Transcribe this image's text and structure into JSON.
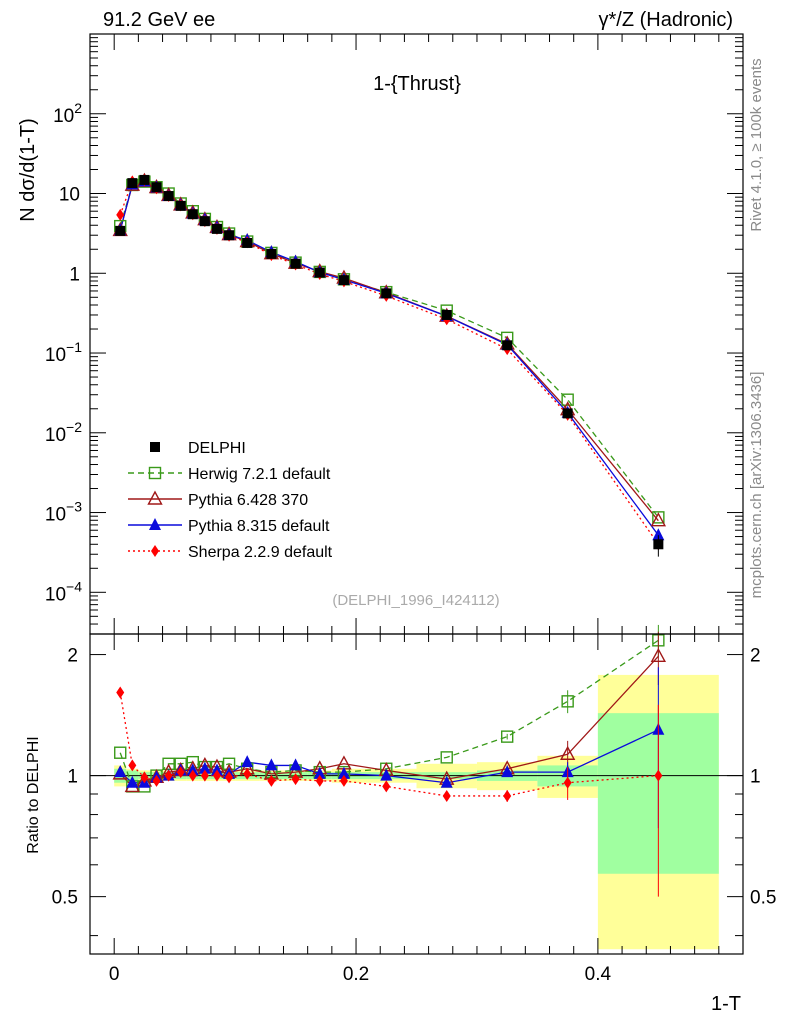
{
  "header": {
    "left": "91.2 GeV ee",
    "right": "γ*/Z (Hadronic)"
  },
  "side_labels": {
    "rivet": "Rivet 4.1.0, ≥ 100k events",
    "mcplots": "mcplots.cern.ch [arXiv:1306.3436]"
  },
  "colors": {
    "delphi": "#000000",
    "herwig": "#3a9a1a",
    "pythia6": "#a01818",
    "pythia8": "#0a0adc",
    "sherpa": "#ff0000",
    "band_inner": "#a0ffa0",
    "band_outer": "#ffff99"
  },
  "chart_data": [
    {
      "type": "line",
      "title": "1-{Thrust}",
      "xlabel": "1-T",
      "ylabel": "N  dσ/d(1-T)",
      "yscale": "log",
      "xlim": [
        -0.02,
        0.52
      ],
      "ylim": [
        3e-05,
        1000
      ],
      "xticks": [
        0,
        0.2,
        0.4
      ],
      "xtick_labels": [
        "0",
        "0.2",
        "0.4"
      ],
      "yticks": [
        0.0001,
        0.001,
        0.01,
        0.1,
        1,
        10,
        100
      ],
      "ytick_labels": [
        "10^-4",
        "10^-3",
        "10^-2",
        "10^-1",
        "1",
        "10",
        "10^2"
      ],
      "annotation": "(DELPHI_1996_I424112)",
      "legend_position": "lower-left",
      "x": [
        0.005,
        0.015,
        0.025,
        0.035,
        0.045,
        0.055,
        0.065,
        0.075,
        0.085,
        0.095,
        0.11,
        0.13,
        0.15,
        0.17,
        0.19,
        0.225,
        0.275,
        0.325,
        0.375,
        0.45
      ],
      "series": [
        {
          "name": "DELPHI",
          "style": "data",
          "values": [
            3.4,
            13.5,
            14.8,
            12.0,
            9.3,
            7.0,
            5.5,
            4.5,
            3.6,
            3.0,
            2.4,
            1.75,
            1.32,
            1.02,
            0.82,
            0.56,
            0.3,
            0.125,
            0.0175,
            0.0004
          ],
          "errors": [
            0.2,
            0.5,
            0.5,
            0.4,
            0.3,
            0.25,
            0.2,
            0.15,
            0.13,
            0.1,
            0.08,
            0.06,
            0.05,
            0.04,
            0.03,
            0.02,
            0.012,
            0.006,
            0.0015,
            0.00012
          ]
        },
        {
          "name": "Herwig 7.2.1 default",
          "style": "dashed",
          "values": [
            3.9,
            12.8,
            14.1,
            12.0,
            10.0,
            7.5,
            6.0,
            4.8,
            3.8,
            3.15,
            2.5,
            1.8,
            1.36,
            1.04,
            0.84,
            0.58,
            0.34,
            0.155,
            0.026,
            0.00087
          ]
        },
        {
          "name": "Pythia 6.428 370",
          "style": "solid",
          "values": [
            3.45,
            12.7,
            14.3,
            11.9,
            9.45,
            7.2,
            5.7,
            4.7,
            3.75,
            3.05,
            2.5,
            1.76,
            1.34,
            1.05,
            0.87,
            0.57,
            0.29,
            0.13,
            0.0195,
            0.00079
          ]
        },
        {
          "name": "Pythia 8.315 default",
          "style": "solid",
          "values": [
            3.45,
            13.0,
            14.2,
            11.9,
            9.3,
            7.15,
            5.6,
            4.7,
            3.75,
            3.03,
            2.6,
            1.84,
            1.4,
            1.03,
            0.83,
            0.56,
            0.29,
            0.127,
            0.0178,
            0.00052
          ]
        },
        {
          "name": "Sherpa 2.2.9 default",
          "style": "dotted",
          "values": [
            5.4,
            14.2,
            14.7,
            11.6,
            9.3,
            7.1,
            5.5,
            4.5,
            3.6,
            2.95,
            2.45,
            1.69,
            1.29,
            0.98,
            0.79,
            0.52,
            0.265,
            0.112,
            0.0168,
            0.0004
          ]
        }
      ]
    },
    {
      "type": "line",
      "xlabel": "1-T",
      "ylabel": "Ratio to DELPHI",
      "xlim": [
        -0.02,
        0.52
      ],
      "ylim": [
        0.36,
        2.25
      ],
      "yticks": [
        0.5,
        1,
        2
      ],
      "ytick_labels": [
        "0.5",
        "1",
        "2"
      ],
      "x": [
        0.005,
        0.015,
        0.025,
        0.035,
        0.045,
        0.055,
        0.065,
        0.075,
        0.085,
        0.095,
        0.11,
        0.13,
        0.15,
        0.17,
        0.19,
        0.225,
        0.275,
        0.325,
        0.375,
        0.45
      ],
      "bands": {
        "edges": [
          0,
          0.01,
          0.02,
          0.03,
          0.04,
          0.05,
          0.06,
          0.07,
          0.08,
          0.09,
          0.1,
          0.12,
          0.14,
          0.16,
          0.18,
          0.2,
          0.25,
          0.3,
          0.35,
          0.4,
          0.5
        ],
        "inner": [
          0.04,
          0.03,
          0.02,
          0.02,
          0.02,
          0.02,
          0.02,
          0.02,
          0.02,
          0.02,
          0.02,
          0.02,
          0.02,
          0.02,
          0.02,
          0.02,
          0.02,
          0.03,
          0.06,
          0.43
        ],
        "outer": [
          0.06,
          0.04,
          0.03,
          0.03,
          0.03,
          0.03,
          0.03,
          0.03,
          0.03,
          0.03,
          0.03,
          0.03,
          0.03,
          0.03,
          0.04,
          0.04,
          0.07,
          0.08,
          0.12,
          0.78
        ]
      },
      "series": [
        {
          "name": "Herwig 7.2.1 default",
          "style": "dashed",
          "values": [
            1.14,
            0.94,
            0.94,
            1.0,
            1.07,
            1.07,
            1.08,
            1.05,
            1.05,
            1.07,
            1.04,
            1.02,
            1.03,
            1.02,
            1.02,
            1.04,
            1.11,
            1.25,
            1.53,
            2.17
          ],
          "errors": [
            0.01,
            0.01,
            0.01,
            0.01,
            0.01,
            0.01,
            0.01,
            0.01,
            0.01,
            0.01,
            0.01,
            0.01,
            0.01,
            0.01,
            0.01,
            0.01,
            0.01,
            0.02,
            0.1,
            0.2
          ]
        },
        {
          "name": "Pythia 6.428 370",
          "style": "solid",
          "values": [
            1.01,
            0.94,
            0.97,
            0.99,
            1.02,
            1.03,
            1.04,
            1.06,
            1.05,
            1.02,
            1.04,
            1.01,
            1.02,
            1.04,
            1.07,
            1.03,
            0.98,
            1.04,
            1.13,
            1.98
          ],
          "errors": [
            0.01,
            0.01,
            0.01,
            0.01,
            0.01,
            0.01,
            0.01,
            0.01,
            0.01,
            0.01,
            0.01,
            0.01,
            0.01,
            0.01,
            0.01,
            0.01,
            0.01,
            0.02,
            0.09,
            0.3
          ]
        },
        {
          "name": "Pythia 8.315 default",
          "style": "solid",
          "values": [
            1.02,
            0.96,
            0.96,
            0.99,
            1.0,
            1.03,
            1.03,
            1.04,
            1.03,
            1.01,
            1.08,
            1.06,
            1.06,
            1.01,
            1.01,
            1.0,
            0.96,
            1.02,
            1.02,
            1.3
          ],
          "errors": [
            0.01,
            0.01,
            0.01,
            0.01,
            0.01,
            0.01,
            0.01,
            0.01,
            0.01,
            0.01,
            0.01,
            0.01,
            0.01,
            0.01,
            0.01,
            0.01,
            0.01,
            0.02,
            0.06,
            0.56
          ]
        },
        {
          "name": "Sherpa 2.2.9 default",
          "style": "dotted",
          "values": [
            1.61,
            1.06,
            0.99,
            0.97,
            1.0,
            1.02,
            1.0,
            1.0,
            1.0,
            0.99,
            1.01,
            0.97,
            0.98,
            0.97,
            0.97,
            0.94,
            0.89,
            0.89,
            0.96,
            1.0
          ],
          "errors": [
            0.01,
            0.01,
            0.01,
            0.01,
            0.01,
            0.01,
            0.01,
            0.01,
            0.01,
            0.01,
            0.01,
            0.01,
            0.01,
            0.01,
            0.01,
            0.01,
            0.01,
            0.03,
            0.09,
            0.5
          ]
        }
      ]
    }
  ]
}
